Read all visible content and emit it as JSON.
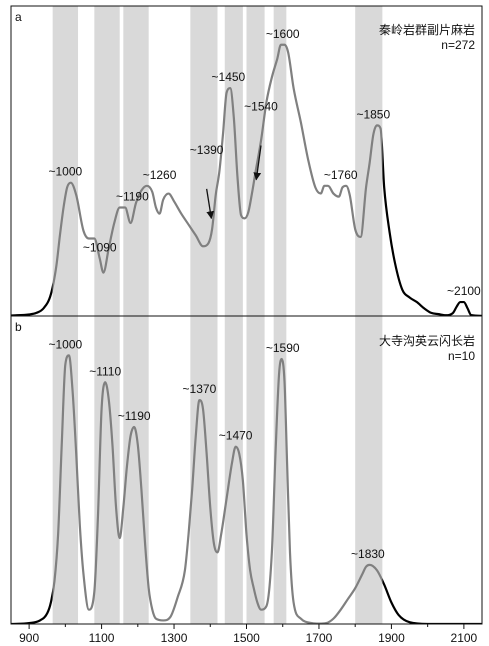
{
  "chart_data": [
    {
      "type": "line",
      "panel_letter": "a",
      "title_lines": [
        "秦岭岩群副片麻岩",
        "n=272"
      ],
      "x": [
        850,
        900,
        920,
        940,
        960,
        975,
        985,
        995,
        1005,
        1015,
        1030,
        1050,
        1065,
        1080,
        1095,
        1105,
        1120,
        1135,
        1150,
        1165,
        1180,
        1195,
        1210,
        1225,
        1240,
        1250,
        1260,
        1270,
        1285,
        1300,
        1320,
        1340,
        1360,
        1380,
        1395,
        1405,
        1415,
        1425,
        1435,
        1445,
        1455,
        1465,
        1475,
        1485,
        1495,
        1505,
        1515,
        1525,
        1540,
        1555,
        1570,
        1585,
        1595,
        1605,
        1615,
        1630,
        1650,
        1670,
        1690,
        1705,
        1715,
        1725,
        1740,
        1755,
        1765,
        1775,
        1785,
        1800,
        1815,
        1830,
        1840,
        1850,
        1860,
        1870,
        1880,
        1895,
        1910,
        1930,
        1950,
        1970,
        1990,
        2010,
        2030,
        2050,
        2070,
        2080,
        2090,
        2100,
        2110,
        2120,
        2150
      ],
      "y": [
        0.3,
        1,
        2,
        5,
        14,
        32,
        52,
        70,
        83,
        86,
        78,
        55,
        50,
        50,
        37,
        28,
        44,
        60,
        70,
        70,
        60,
        73,
        81,
        84,
        80,
        70,
        66,
        75,
        79,
        74,
        66,
        59,
        52,
        45,
        47,
        56,
        78,
        93,
        117,
        144,
        147,
        128,
        90,
        65,
        63,
        67,
        79,
        93,
        113,
        138,
        154,
        166,
        175,
        175,
        170,
        147,
        125,
        101,
        83,
        79,
        84,
        84,
        79,
        77,
        83,
        84,
        78,
        56,
        51,
        83,
        99,
        117,
        123,
        121,
        83,
        54,
        34,
        17,
        12,
        9,
        5,
        2,
        1.2,
        0.5,
        2,
        6,
        9,
        9,
        5,
        0.6,
        0.1
      ],
      "xlim": [
        850,
        2150
      ],
      "ylim": [
        0,
        200
      ],
      "peak_labels": [
        {
          "text": "~1000",
          "x": 1000,
          "y": 86
        },
        {
          "text": "~1090",
          "x": 1095,
          "y": 37
        },
        {
          "text": "~1190",
          "x": 1185,
          "y": 70
        },
        {
          "text": "~1260",
          "x": 1260,
          "y": 84
        },
        {
          "text": "~1390",
          "x": 1390,
          "y": 100
        },
        {
          "text": "~1450",
          "x": 1450,
          "y": 147
        },
        {
          "text": "~1540",
          "x": 1540,
          "y": 128
        },
        {
          "text": "~1600",
          "x": 1600,
          "y": 175
        },
        {
          "text": "~1760",
          "x": 1760,
          "y": 84
        },
        {
          "text": "~1850",
          "x": 1850,
          "y": 123
        },
        {
          "text": "~2100",
          "x": 2100,
          "y": 9
        }
      ],
      "arrows": [
        {
          "from": [
            1390,
            82
          ],
          "to": [
            1403,
            63
          ]
        },
        {
          "from": [
            1540,
            110
          ],
          "to": [
            1527,
            88
          ]
        }
      ]
    },
    {
      "type": "line",
      "panel_letter": "b",
      "title_lines": [
        "大寺沟英云闪长岩",
        "n=10"
      ],
      "x": [
        850,
        900,
        930,
        950,
        960,
        970,
        980,
        990,
        1000,
        1010,
        1020,
        1030,
        1040,
        1050,
        1065,
        1080,
        1090,
        1100,
        1110,
        1120,
        1130,
        1140,
        1150,
        1160,
        1170,
        1180,
        1190,
        1200,
        1210,
        1220,
        1230,
        1240,
        1250,
        1270,
        1290,
        1310,
        1330,
        1340,
        1350,
        1360,
        1370,
        1380,
        1390,
        1400,
        1410,
        1420,
        1430,
        1445,
        1460,
        1470,
        1480,
        1490,
        1500,
        1510,
        1520,
        1530,
        1540,
        1555,
        1570,
        1580,
        1590,
        1597,
        1605,
        1612,
        1620,
        1630,
        1650,
        1680,
        1700,
        1720,
        1740,
        1760,
        1780,
        1800,
        1820,
        1830,
        1840,
        1860,
        1880,
        1900,
        1920,
        1950,
        2000,
        2150
      ],
      "y": [
        0,
        0.5,
        2,
        6,
        12,
        24,
        50,
        100,
        145,
        150,
        130,
        95,
        55,
        28,
        8,
        18,
        60,
        120,
        135,
        125,
        100,
        65,
        48,
        65,
        88,
        105,
        110,
        100,
        75,
        45,
        20,
        8,
        3,
        2,
        4,
        15,
        30,
        50,
        75,
        105,
        125,
        120,
        95,
        65,
        45,
        40,
        50,
        70,
        90,
        99,
        95,
        80,
        50,
        30,
        20,
        12,
        8,
        10,
        40,
        95,
        140,
        148,
        135,
        90,
        40,
        12,
        3,
        0.5,
        0.2,
        0.5,
        3,
        8,
        14,
        20,
        28,
        32,
        33,
        30,
        22,
        12,
        5,
        1,
        0,
        0
      ],
      "xlim": [
        850,
        2150
      ],
      "ylim": [
        0,
        172
      ],
      "peak_labels": [
        {
          "text": "~1000",
          "x": 1000,
          "y": 150
        },
        {
          "text": "~1110",
          "x": 1110,
          "y": 135
        },
        {
          "text": "~1190",
          "x": 1190,
          "y": 110
        },
        {
          "text": "~1370",
          "x": 1370,
          "y": 125
        },
        {
          "text": "~1470",
          "x": 1470,
          "y": 99
        },
        {
          "text": "~1590",
          "x": 1600,
          "y": 148
        },
        {
          "text": "~1830",
          "x": 1835,
          "y": 33
        }
      ],
      "arrows": []
    }
  ],
  "shaded_bands": [
    [
      965,
      1035
    ],
    [
      1080,
      1150
    ],
    [
      1160,
      1230
    ],
    [
      1345,
      1420
    ],
    [
      1440,
      1490
    ],
    [
      1500,
      1550
    ],
    [
      1575,
      1610
    ],
    [
      1800,
      1875
    ]
  ],
  "x_ticks": [
    900,
    1100,
    1300,
    1500,
    1700,
    1900,
    2100
  ],
  "x_tick_labels": [
    "900",
    "1100",
    "1300",
    "1500",
    "1700",
    "1900",
    "2100"
  ],
  "colors": {
    "band": "#d9d9d9",
    "curve_fill_region": "#808080",
    "curve": "#000000"
  }
}
